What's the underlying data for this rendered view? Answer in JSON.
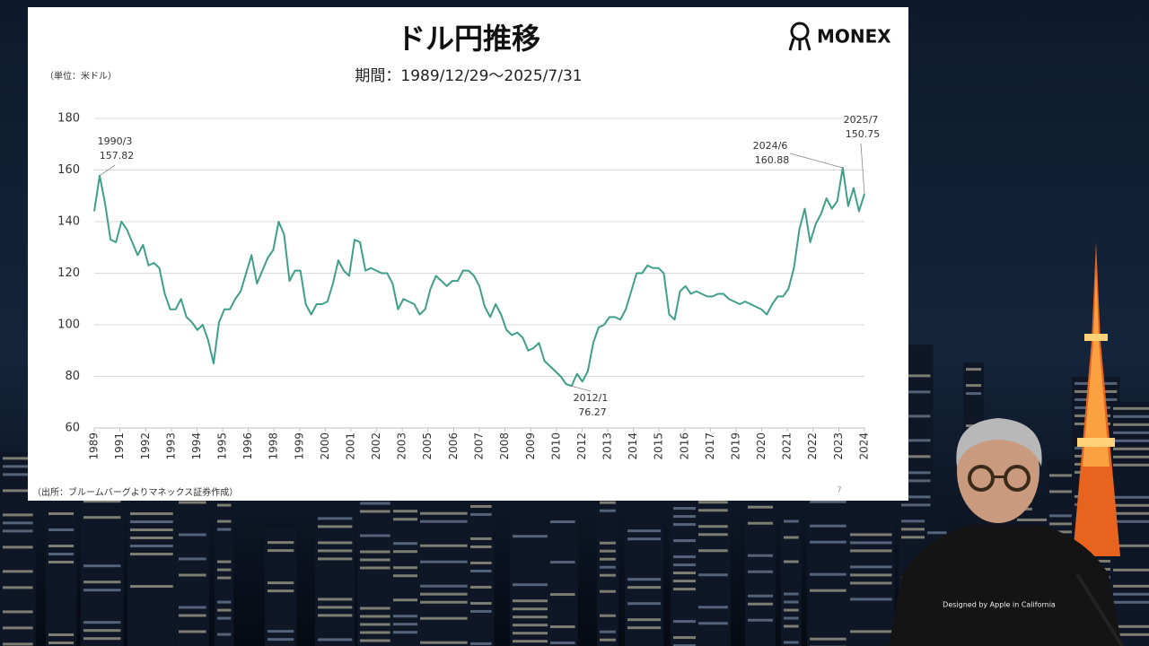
{
  "chart_data": {
    "type": "line",
    "title": "ドル円推移",
    "subtitle": "期間：1989/12/29〜2025/7/31",
    "unit_note": "（単位：米ドル）",
    "source": "（出所：ブルームバーグよりマネックス証券作成）",
    "page_number": "7",
    "logo": "MONEX",
    "xlim": [
      1990,
      2025.5
    ],
    "xticks": [
      {
        "value": 1990,
        "label": "1989"
      },
      {
        "value": 1991.18,
        "label": "1991"
      },
      {
        "value": 1992.37,
        "label": "1992"
      },
      {
        "value": 1993.55,
        "label": "1993"
      },
      {
        "value": 1994.73,
        "label": "1994"
      },
      {
        "value": 1995.92,
        "label": "1995"
      },
      {
        "value": 1997.1,
        "label": "1996"
      },
      {
        "value": 1998.28,
        "label": "1998"
      },
      {
        "value": 1999.47,
        "label": "1999"
      },
      {
        "value": 2000.65,
        "label": "2000"
      },
      {
        "value": 2001.83,
        "label": "2001"
      },
      {
        "value": 2003.02,
        "label": "2002"
      },
      {
        "value": 2004.2,
        "label": "2003"
      },
      {
        "value": 2005.38,
        "label": "2005"
      },
      {
        "value": 2006.57,
        "label": "2006"
      },
      {
        "value": 2007.75,
        "label": "2007"
      },
      {
        "value": 2008.93,
        "label": "2008"
      },
      {
        "value": 2010.12,
        "label": "2009"
      },
      {
        "value": 2011.3,
        "label": "2010"
      },
      {
        "value": 2012.48,
        "label": "2012"
      },
      {
        "value": 2013.67,
        "label": "2013"
      },
      {
        "value": 2014.85,
        "label": "2014"
      },
      {
        "value": 2016.03,
        "label": "2015"
      },
      {
        "value": 2017.22,
        "label": "2016"
      },
      {
        "value": 2018.4,
        "label": "2017"
      },
      {
        "value": 2019.58,
        "label": "2019"
      },
      {
        "value": 2020.77,
        "label": "2020"
      },
      {
        "value": 2021.95,
        "label": "2021"
      },
      {
        "value": 2023.13,
        "label": "2022"
      },
      {
        "value": 2024.32,
        "label": "2023"
      },
      {
        "value": 2025.5,
        "label": "2024"
      }
    ],
    "ylim": [
      60,
      180
    ],
    "yticks": [
      60,
      80,
      100,
      120,
      140,
      160,
      180
    ],
    "grid": true,
    "x": [
      1990,
      1990.25,
      1990.5,
      1990.75,
      1991,
      1991.25,
      1991.5,
      1991.75,
      1992,
      1992.25,
      1992.5,
      1992.75,
      1993,
      1993.25,
      1993.5,
      1993.75,
      1994,
      1994.25,
      1994.5,
      1994.75,
      1995,
      1995.25,
      1995.5,
      1995.75,
      1996,
      1996.25,
      1996.5,
      1996.75,
      1997,
      1997.25,
      1997.5,
      1997.75,
      1998,
      1998.25,
      1998.5,
      1998.75,
      1999,
      1999.25,
      1999.5,
      1999.75,
      2000,
      2000.25,
      2000.5,
      2000.75,
      2001,
      2001.25,
      2001.5,
      2001.75,
      2002,
      2002.25,
      2002.5,
      2002.75,
      2003,
      2003.25,
      2003.5,
      2003.75,
      2004,
      2004.25,
      2004.5,
      2004.75,
      2005,
      2005.25,
      2005.5,
      2005.75,
      2006,
      2006.25,
      2006.5,
      2006.75,
      2007,
      2007.25,
      2007.5,
      2007.75,
      2008,
      2008.25,
      2008.5,
      2008.75,
      2009,
      2009.25,
      2009.5,
      2009.75,
      2010,
      2010.25,
      2010.5,
      2010.75,
      2011,
      2011.25,
      2011.5,
      2011.75,
      2012,
      2012.25,
      2012.5,
      2012.75,
      2013,
      2013.25,
      2013.5,
      2013.75,
      2014,
      2014.25,
      2014.5,
      2014.75,
      2015,
      2015.25,
      2015.5,
      2015.75,
      2016,
      2016.25,
      2016.5,
      2016.75,
      2017,
      2017.25,
      2017.5,
      2017.75,
      2018,
      2018.25,
      2018.5,
      2018.75,
      2019,
      2019.25,
      2019.5,
      2019.75,
      2020,
      2020.25,
      2020.5,
      2020.75,
      2021,
      2021.25,
      2021.5,
      2021.75,
      2022,
      2022.25,
      2022.5,
      2022.75,
      2023,
      2023.25,
      2023.5,
      2023.75,
      2024,
      2024.25,
      2024.5,
      2024.75,
      2025,
      2025.25,
      2025.5
    ],
    "series": [
      {
        "name": "USD/JPY",
        "color": "#3f9f88",
        "values": [
          144,
          157.82,
          147,
          133,
          132,
          140,
          137,
          132,
          127,
          131,
          123,
          124,
          122,
          112,
          106,
          106,
          110,
          103,
          101,
          98,
          100,
          94,
          85,
          101,
          106,
          106,
          110,
          113,
          120,
          127,
          116,
          121,
          126,
          129,
          140,
          135,
          117,
          121,
          121,
          108,
          104,
          108,
          108,
          109,
          116,
          125,
          121,
          119,
          133,
          132,
          121,
          122,
          121,
          120,
          120,
          116,
          106,
          110,
          109,
          108,
          104,
          106,
          114,
          119,
          117,
          115,
          117,
          117,
          121,
          121,
          119,
          115,
          107,
          103,
          108,
          104,
          98,
          96,
          97,
          95,
          90,
          91,
          93,
          86,
          84,
          82,
          80,
          77,
          76.27,
          81,
          78,
          82,
          93,
          99,
          100,
          103,
          103,
          102,
          106,
          113,
          120,
          120,
          123,
          122,
          122,
          120,
          104,
          102,
          113,
          115,
          112,
          113,
          112,
          111,
          111,
          112,
          112,
          110,
          109,
          108,
          109,
          108,
          107,
          106,
          104,
          108,
          111,
          111,
          114,
          122,
          137,
          145,
          132,
          139,
          143,
          149,
          145,
          148,
          160.88,
          146,
          153,
          144,
          150.75
        ]
      }
    ],
    "annotations": [
      {
        "text": "1990/3",
        "value": 157.82
      },
      {
        "text": "2012/1",
        "value": 76.27
      },
      {
        "text": "2024/6",
        "value": 160.88
      },
      {
        "text": "2025/7",
        "value": 150.75
      }
    ]
  }
}
